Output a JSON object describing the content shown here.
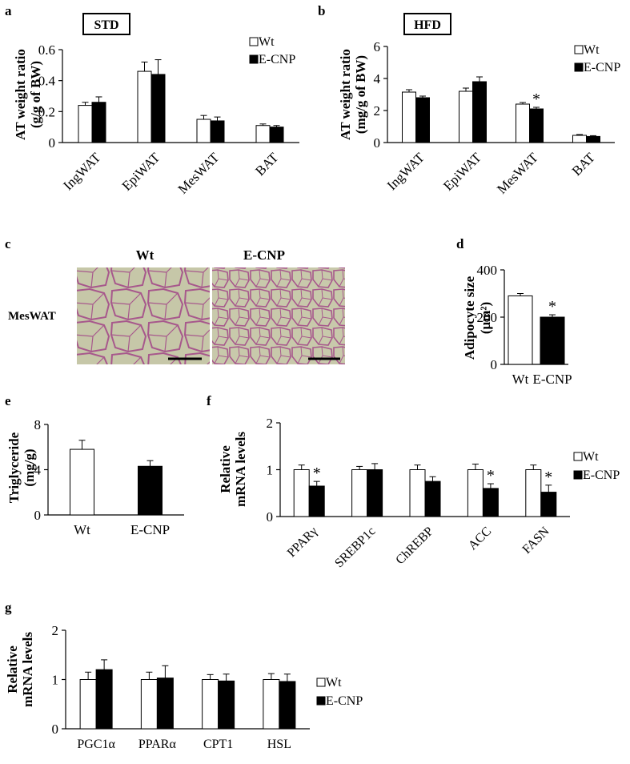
{
  "colors": {
    "wt": "#ffffff",
    "ecnp": "#000000",
    "stroke": "#000000",
    "micro_bg": "#c6c7a8",
    "micro_wall": "#a7588c"
  },
  "panel_letters": {
    "a": "a",
    "b": "b",
    "c": "c",
    "d": "d",
    "e": "e",
    "f": "f",
    "g": "g"
  },
  "legend": {
    "wt": "Wt",
    "ecnp": "E-CNP"
  },
  "micrograph": {
    "row_label": "MesWAT",
    "col_wt": "Wt",
    "col_ecnp": "E-CNP"
  },
  "chart_data": [
    {
      "panel": "a",
      "type": "bar",
      "box_label": "STD",
      "ylabel_lines": [
        "AT weight ratio",
        "(g/g of BW)"
      ],
      "ylim": [
        0,
        0.6
      ],
      "yticks": [
        "0",
        "0.2",
        "0.4",
        "0.6"
      ],
      "categories": [
        "IngWAT",
        "EpiWAT",
        "MesWAT",
        "BAT"
      ],
      "series": [
        {
          "name": "Wt",
          "values": [
            0.24,
            0.46,
            0.15,
            0.11
          ],
          "errors": [
            0.02,
            0.06,
            0.025,
            0.01
          ]
        },
        {
          "name": "E-CNP",
          "values": [
            0.26,
            0.44,
            0.14,
            0.1
          ],
          "errors": [
            0.035,
            0.095,
            0.025,
            0.01
          ]
        }
      ],
      "annotations": []
    },
    {
      "panel": "b",
      "type": "bar",
      "box_label": "HFD",
      "ylabel_lines": [
        "AT weight ratio",
        "(mg/g of BW)"
      ],
      "ylim": [
        0,
        6
      ],
      "yticks": [
        "0",
        "2",
        "4",
        "6"
      ],
      "categories": [
        "IngWAT",
        "EpiWAT",
        "MesWAT",
        "BAT"
      ],
      "series": [
        {
          "name": "Wt",
          "values": [
            3.15,
            3.2,
            2.4,
            0.45
          ],
          "errors": [
            0.15,
            0.2,
            0.1,
            0.05
          ]
        },
        {
          "name": "E-CNP",
          "values": [
            2.8,
            3.8,
            2.1,
            0.38
          ],
          "errors": [
            0.1,
            0.3,
            0.1,
            0.05
          ]
        }
      ],
      "annotations": [
        {
          "category": "MesWAT",
          "series": "E-CNP",
          "text": "*"
        }
      ]
    },
    {
      "panel": "d",
      "type": "bar",
      "ylabel_lines": [
        "Adipocyte size",
        "(μm²)"
      ],
      "ylim": [
        0,
        400
      ],
      "yticks": [
        "0",
        "200",
        "400"
      ],
      "categories": [
        "Wt",
        "E-CNP"
      ],
      "values": [
        290,
        200
      ],
      "errors": [
        10,
        10
      ],
      "annotations": [
        {
          "category": "E-CNP",
          "text": "*"
        }
      ]
    },
    {
      "panel": "e",
      "type": "bar",
      "ylabel_lines": [
        "Triglyceride",
        "(mg/g)"
      ],
      "ylim": [
        0,
        8
      ],
      "yticks": [
        "0",
        "4",
        "8"
      ],
      "categories": [
        "Wt",
        "E-CNP"
      ],
      "values": [
        5.8,
        4.3
      ],
      "errors": [
        0.8,
        0.5
      ],
      "annotations": []
    },
    {
      "panel": "f",
      "type": "bar",
      "ylabel_lines": [
        "Relative",
        "mRNA levels"
      ],
      "ylim": [
        0,
        2
      ],
      "yticks": [
        "0",
        "1",
        "2"
      ],
      "categories": [
        "PPARγ",
        "SREBP1c",
        "ChREBP",
        "ACC",
        "FASN"
      ],
      "series": [
        {
          "name": "Wt",
          "values": [
            1.0,
            1.0,
            1.0,
            1.0,
            1.0
          ],
          "errors": [
            0.1,
            0.07,
            0.1,
            0.12,
            0.1
          ]
        },
        {
          "name": "E-CNP",
          "values": [
            0.65,
            1.0,
            0.75,
            0.6,
            0.52
          ],
          "errors": [
            0.1,
            0.13,
            0.1,
            0.1,
            0.15
          ]
        }
      ],
      "annotations": [
        {
          "category": "PPARγ",
          "series": "E-CNP",
          "text": "*"
        },
        {
          "category": "ACC",
          "series": "E-CNP",
          "text": "*"
        },
        {
          "category": "FASN",
          "series": "E-CNP",
          "text": "*"
        }
      ]
    },
    {
      "panel": "g",
      "type": "bar",
      "ylabel_lines": [
        "Relative",
        "mRNA levels"
      ],
      "ylim": [
        0,
        2
      ],
      "yticks": [
        "0",
        "1",
        "2"
      ],
      "categories": [
        "PGC1α",
        "PPARα",
        "CPT1",
        "HSL"
      ],
      "series": [
        {
          "name": "Wt",
          "values": [
            1.0,
            1.0,
            1.0,
            1.0
          ],
          "errors": [
            0.15,
            0.15,
            0.1,
            0.12
          ]
        },
        {
          "name": "E-CNP",
          "values": [
            1.2,
            1.03,
            0.97,
            0.96
          ],
          "errors": [
            0.2,
            0.25,
            0.14,
            0.15
          ]
        }
      ],
      "annotations": []
    }
  ]
}
